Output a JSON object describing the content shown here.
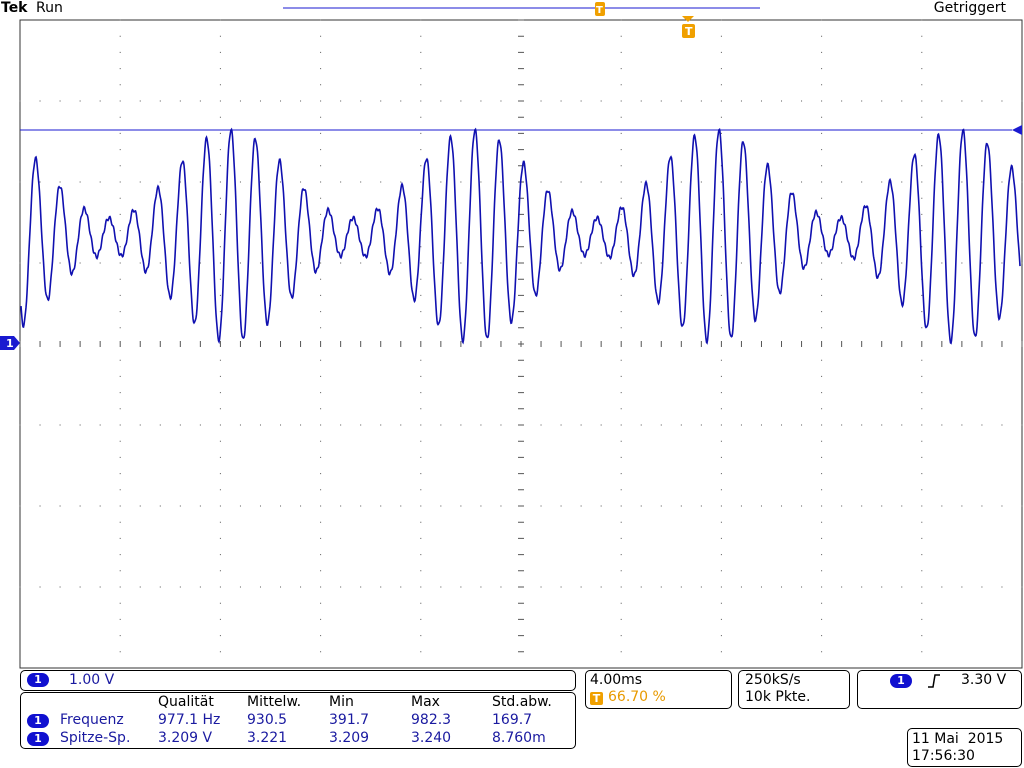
{
  "header": {
    "brand": "Tek",
    "status": "Run",
    "trigger_state": "Getriggert"
  },
  "markers": {
    "ground": "1",
    "trigger": "T",
    "trigger_top": "T"
  },
  "channel": {
    "label": "1",
    "scale": "1.00 V"
  },
  "timebase": {
    "scale": "4.00ms",
    "trigger_marker": "T",
    "trigger_position": "66.70 %"
  },
  "acquisition": {
    "sample_rate": "250kS/s",
    "record_length": "10k Pkte."
  },
  "trigger": {
    "channel": "1",
    "level": "3.30 V"
  },
  "measurements": {
    "headers": [
      "Qualität",
      "Mittelw.",
      "Min",
      "Max",
      "Std.abw."
    ],
    "rows": [
      {
        "channel": "1",
        "name": "Frequenz",
        "values": [
          "977.1 Hz",
          "930.5",
          "391.7",
          "982.3",
          "169.7"
        ]
      },
      {
        "channel": "1",
        "name": "Spitze-Sp.",
        "values": [
          "3.209 V",
          "3.221",
          "3.209",
          "3.240",
          "8.760m"
        ]
      }
    ]
  },
  "datetime": {
    "date": "11 Mai  2015",
    "time": "17:56:30"
  }
}
